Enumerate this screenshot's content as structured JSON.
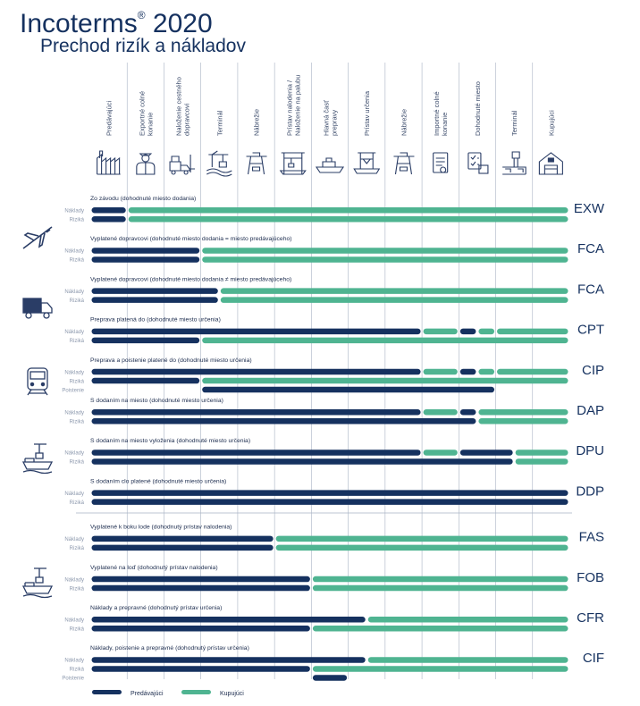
{
  "header": {
    "title_main": "Incoterms",
    "title_reg": "®",
    "title_year": "2020",
    "subtitle": "Prechod rizík a nákladov"
  },
  "colors": {
    "seller": "#15315f",
    "buyer": "#4fb491",
    "grid": "#a9b3c4",
    "icon": "#2a3d66"
  },
  "columns": [
    {
      "label": [
        "Predávajúci"
      ],
      "icon": "factory-icon"
    },
    {
      "label": [
        "Exportné colné",
        "konanie"
      ],
      "icon": "customs-officer-icon"
    },
    {
      "label": [
        "Naloženie cestného",
        "dopravcovi"
      ],
      "icon": "forklift-truck-icon"
    },
    {
      "label": [
        "Terminál"
      ],
      "icon": "terminal-crane-icon"
    },
    {
      "label": [
        "Nábrežie"
      ],
      "icon": "quay-crane-icon"
    },
    {
      "label": [
        "Prístav nalodenia /",
        "Naloženie na palubu"
      ],
      "icon": "port-loading-icon"
    },
    {
      "label": [
        "Hlavná časť",
        "prepravy"
      ],
      "icon": "cargo-ship-icon"
    },
    {
      "label": [
        "Prístav určenia"
      ],
      "icon": "port-destination-icon"
    },
    {
      "label": [
        "Nábrežie"
      ],
      "icon": "quay-crane-icon"
    },
    {
      "label": [
        "Importné colné",
        "konanie"
      ],
      "icon": "customs-document-icon"
    },
    {
      "label": [
        "Dohodnuté miesto"
      ],
      "icon": "checklist-box-icon"
    },
    {
      "label": [
        "Terminál"
      ],
      "icon": "terminal-tower-icon"
    },
    {
      "label": [
        "Kupujúci"
      ],
      "icon": "warehouse-icon"
    }
  ],
  "row_labels": {
    "costs": "Náklady",
    "risks": "Riziká",
    "insurance": "Poistenie"
  },
  "mode_groups": [
    {
      "name": "any-mode",
      "icons": [
        "airplane-icon",
        "truck-icon",
        "train-icon",
        "ship-icon"
      ]
    },
    {
      "name": "sea-inland-waterway",
      "icons": [
        "ship-icon"
      ]
    }
  ],
  "terms": [
    {
      "code": "EXW",
      "desc": "Zo závodu (dohodnuté miesto dodania)",
      "costs": [
        [
          0,
          1,
          "seller"
        ],
        [
          1,
          13,
          "buyer"
        ]
      ],
      "risks": [
        [
          0,
          1,
          "seller"
        ],
        [
          1,
          13,
          "buyer"
        ]
      ]
    },
    {
      "code": "FCA",
      "desc": "Vyplatené dopravcovi (dohodnuté miesto dodania = miesto predávajúceho)",
      "costs": [
        [
          0,
          3,
          "seller"
        ],
        [
          3,
          13,
          "buyer"
        ]
      ],
      "risks": [
        [
          0,
          3,
          "seller"
        ],
        [
          3,
          13,
          "buyer"
        ]
      ]
    },
    {
      "code": "FCA",
      "desc": "Vyplatené dopravcovi (dohodnuté miesto dodania ≠ miesto predávajúceho)",
      "costs": [
        [
          0,
          3.5,
          "seller"
        ],
        [
          3.5,
          13,
          "buyer"
        ]
      ],
      "risks": [
        [
          0,
          3.5,
          "seller"
        ],
        [
          3.5,
          13,
          "buyer"
        ]
      ]
    },
    {
      "code": "CPT",
      "desc": "Preprava platená do (dohodnuté miesto určenia)",
      "costs": [
        [
          0,
          9,
          "seller"
        ],
        [
          9,
          10,
          "buyer"
        ],
        [
          10,
          10.5,
          "seller"
        ],
        [
          10.5,
          11,
          "buyer"
        ],
        [
          11,
          13,
          "buyer"
        ]
      ],
      "risks": [
        [
          0,
          3,
          "seller"
        ],
        [
          3,
          13,
          "buyer"
        ]
      ]
    },
    {
      "code": "CIP",
      "desc": "Preprava a poistenie platené do (dohodnuté miesto určenia)",
      "costs": [
        [
          0,
          9,
          "seller"
        ],
        [
          9,
          10,
          "buyer"
        ],
        [
          10,
          10.5,
          "seller"
        ],
        [
          10.5,
          11,
          "buyer"
        ],
        [
          11,
          13,
          "buyer"
        ]
      ],
      "risks": [
        [
          0,
          3,
          "seller"
        ],
        [
          3,
          13,
          "buyer"
        ]
      ],
      "insurance": [
        [
          3,
          11,
          "seller"
        ]
      ]
    },
    {
      "code": "DAP",
      "desc": "S dodaním na miesto (dohodnuté miesto určenia)",
      "costs": [
        [
          0,
          9,
          "seller"
        ],
        [
          9,
          10,
          "buyer"
        ],
        [
          10,
          10.5,
          "seller"
        ],
        [
          10.5,
          13,
          "buyer"
        ]
      ],
      "risks": [
        [
          0,
          10.5,
          "seller"
        ],
        [
          10.5,
          13,
          "buyer"
        ]
      ]
    },
    {
      "code": "DPU",
      "desc": "S dodaním na miesto vyloženia (dohodnuté miesto určenia)",
      "costs": [
        [
          0,
          9,
          "seller"
        ],
        [
          9,
          10,
          "buyer"
        ],
        [
          10,
          11.5,
          "seller"
        ],
        [
          11.5,
          13,
          "buyer"
        ]
      ],
      "risks": [
        [
          0,
          11.5,
          "seller"
        ],
        [
          11.5,
          13,
          "buyer"
        ]
      ]
    },
    {
      "code": "DDP",
      "desc": "S dodaním clo platené (dohodnuté miesto určenia)",
      "costs": [
        [
          0,
          13,
          "seller"
        ]
      ],
      "risks": [
        [
          0,
          13,
          "seller"
        ]
      ]
    },
    {
      "code": "FAS",
      "desc": "Vyplatené k boku lode (dohodnutý prístav nalodenia)",
      "costs": [
        [
          0,
          5,
          "seller"
        ],
        [
          5,
          13,
          "buyer"
        ]
      ],
      "risks": [
        [
          0,
          5,
          "seller"
        ],
        [
          5,
          13,
          "buyer"
        ]
      ]
    },
    {
      "code": "FOB",
      "desc": "Vyplatené na loď (dohodnutý prístav nalodenia)",
      "costs": [
        [
          0,
          6,
          "seller"
        ],
        [
          6,
          13,
          "buyer"
        ]
      ],
      "risks": [
        [
          0,
          6,
          "seller"
        ],
        [
          6,
          13,
          "buyer"
        ]
      ]
    },
    {
      "code": "CFR",
      "desc": "Náklady a prepravné (dohodnutý prístav určenia)",
      "costs": [
        [
          0,
          7.5,
          "seller"
        ],
        [
          7.5,
          13,
          "buyer"
        ]
      ],
      "risks": [
        [
          0,
          6,
          "seller"
        ],
        [
          6,
          13,
          "buyer"
        ]
      ]
    },
    {
      "code": "CIF",
      "desc": "Náklady, poistenie a prepravné (dohodnutý prístav určenia)",
      "costs": [
        [
          0,
          7.5,
          "seller"
        ],
        [
          7.5,
          13,
          "buyer"
        ]
      ],
      "risks": [
        [
          0,
          6,
          "seller"
        ],
        [
          6,
          13,
          "buyer"
        ]
      ],
      "insurance": [
        [
          6,
          7,
          "seller"
        ]
      ]
    }
  ],
  "legend": [
    {
      "key": "seller",
      "label": "Predávajúci"
    },
    {
      "key": "buyer",
      "label": "Kupujúci"
    }
  ]
}
